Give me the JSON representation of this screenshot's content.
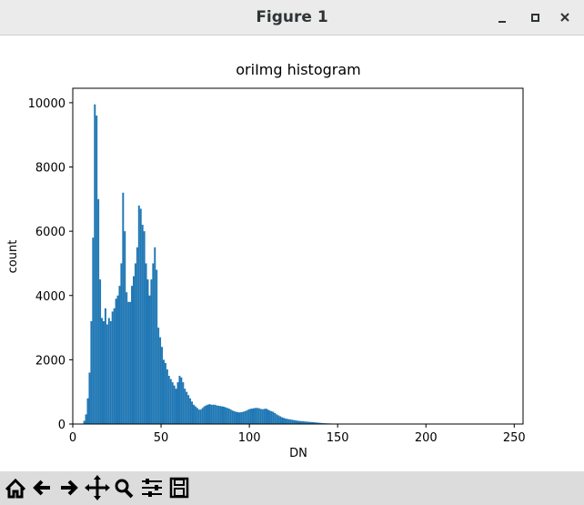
{
  "window": {
    "title": "Figure 1"
  },
  "chart_data": {
    "type": "histogram",
    "title": "oriImg histogram",
    "x_label": "DN",
    "y_label": "count",
    "color": "#1f77b4",
    "bins": [
      6,
      7,
      8,
      9,
      10,
      11,
      12,
      13,
      14,
      15,
      16,
      17,
      18,
      19,
      20,
      21,
      22,
      23,
      24,
      25,
      26,
      27,
      28,
      29,
      30,
      31,
      32,
      33,
      34,
      35,
      36,
      37,
      38,
      39,
      40,
      41,
      42,
      43,
      44,
      45,
      46,
      47,
      48,
      49,
      50,
      51,
      52,
      53,
      54,
      55,
      56,
      57,
      58,
      59,
      60,
      61,
      62,
      63,
      64,
      65,
      66,
      67,
      68,
      69,
      70,
      71,
      72,
      73,
      74,
      75,
      76,
      77,
      78,
      79,
      80,
      81,
      82,
      83,
      84,
      85,
      86,
      87,
      88,
      89,
      90,
      91,
      92,
      93,
      94,
      95,
      96,
      97,
      98,
      99,
      100,
      101,
      102,
      103,
      104,
      105,
      106,
      107,
      108,
      109,
      110,
      111,
      112,
      113,
      114,
      115,
      116,
      117,
      118,
      119,
      120,
      121,
      122,
      123,
      124,
      125,
      126,
      127,
      128,
      129,
      130,
      131,
      132,
      133,
      134,
      135,
      136,
      137,
      138,
      139,
      140,
      141,
      142,
      143,
      144,
      145,
      146,
      147,
      148,
      149,
      150,
      151,
      152,
      153,
      154,
      155,
      156
    ],
    "counts": [
      100,
      300,
      800,
      1600,
      3200,
      5800,
      9950,
      9600,
      7000,
      4500,
      3300,
      3200,
      3600,
      3100,
      3300,
      3200,
      3500,
      3600,
      3900,
      4000,
      4300,
      5000,
      7200,
      6000,
      4100,
      3800,
      3800,
      4300,
      4600,
      5000,
      5500,
      6800,
      6700,
      6200,
      6000,
      5000,
      4500,
      4000,
      4500,
      5000,
      5500,
      4800,
      3000,
      2700,
      2400,
      2000,
      1900,
      1700,
      1500,
      1400,
      1300,
      1200,
      1100,
      1300,
      1500,
      1450,
      1300,
      1100,
      1000,
      900,
      800,
      700,
      600,
      550,
      500,
      450,
      450,
      500,
      550,
      580,
      600,
      620,
      600,
      600,
      600,
      580,
      570,
      560,
      550,
      540,
      520,
      500,
      480,
      450,
      420,
      400,
      380,
      370,
      360,
      370,
      380,
      400,
      420,
      450,
      470,
      480,
      490,
      500,
      500,
      490,
      470,
      460,
      470,
      480,
      450,
      420,
      400,
      380,
      340,
      300,
      270,
      240,
      210,
      190,
      170,
      160,
      150,
      140,
      130,
      120,
      110,
      100,
      95,
      90,
      85,
      80,
      75,
      70,
      65,
      60,
      55,
      50,
      45,
      40,
      35,
      30,
      25,
      22,
      20,
      18,
      16,
      14,
      12,
      10,
      8,
      6,
      5,
      4,
      3,
      2
    ],
    "xlim": [
      0,
      255
    ],
    "ylim": [
      0,
      10450
    ],
    "xticks": [
      0,
      50,
      100,
      150,
      200,
      250
    ],
    "yticks": [
      0,
      2000,
      4000,
      6000,
      8000,
      10000
    ],
    "grid": false
  }
}
